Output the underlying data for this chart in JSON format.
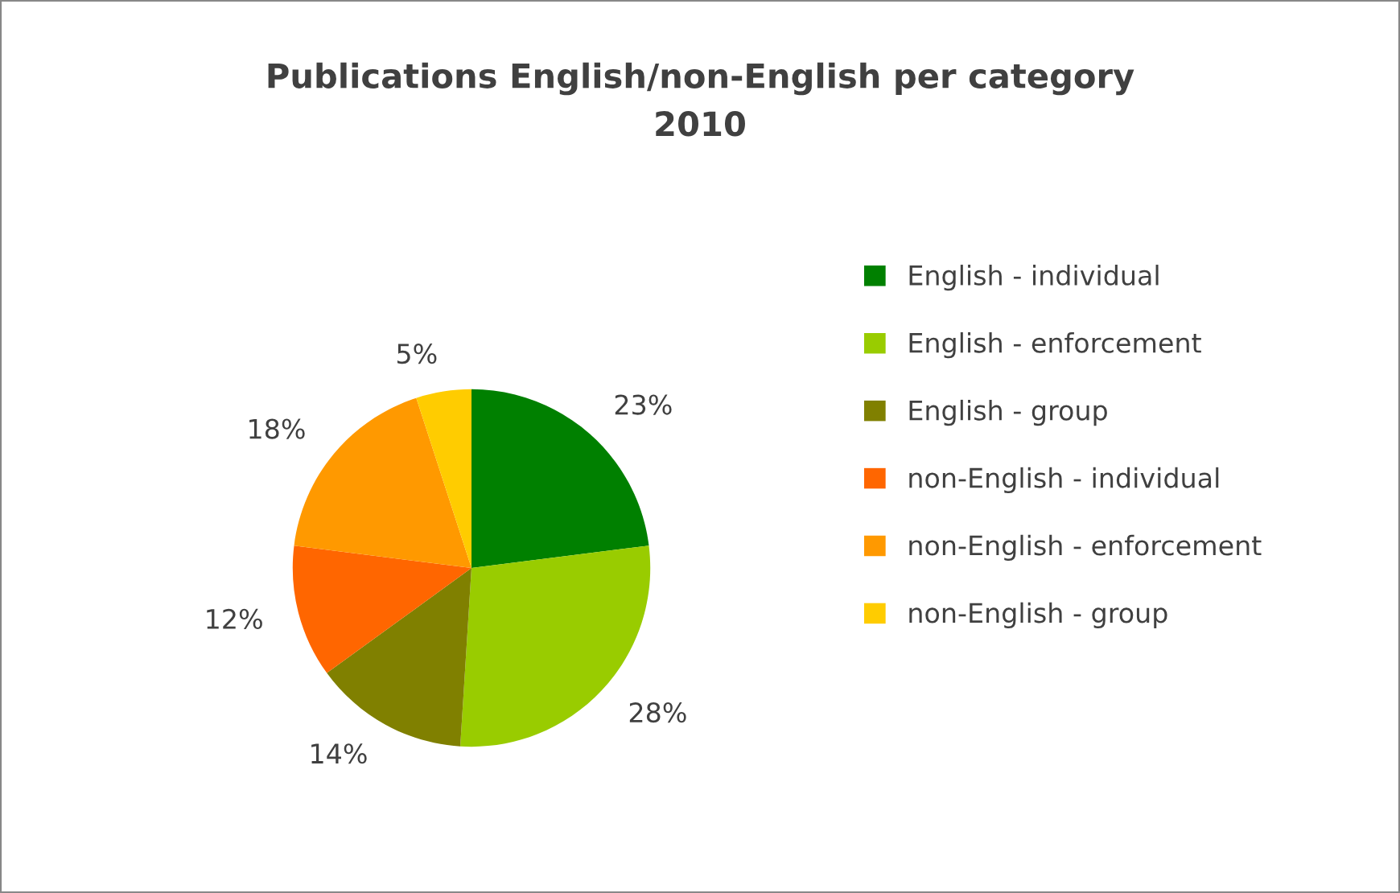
{
  "chart_data": {
    "type": "pie",
    "title": "Publications English/non-English per category\n2010",
    "categories": [
      "English - individual",
      "English - enforcement",
      "English - group",
      "non-English - individual",
      "non-English - enforcement",
      "non-English - group"
    ],
    "values": [
      23,
      28,
      14,
      12,
      18,
      5
    ],
    "colors": [
      "#008000",
      "#99cc00",
      "#808000",
      "#ff6600",
      "#ff9900",
      "#ffcc00"
    ],
    "value_labels": [
      "23%",
      "28%",
      "14%",
      "12%",
      "18%",
      "5%"
    ],
    "legend": "right"
  }
}
